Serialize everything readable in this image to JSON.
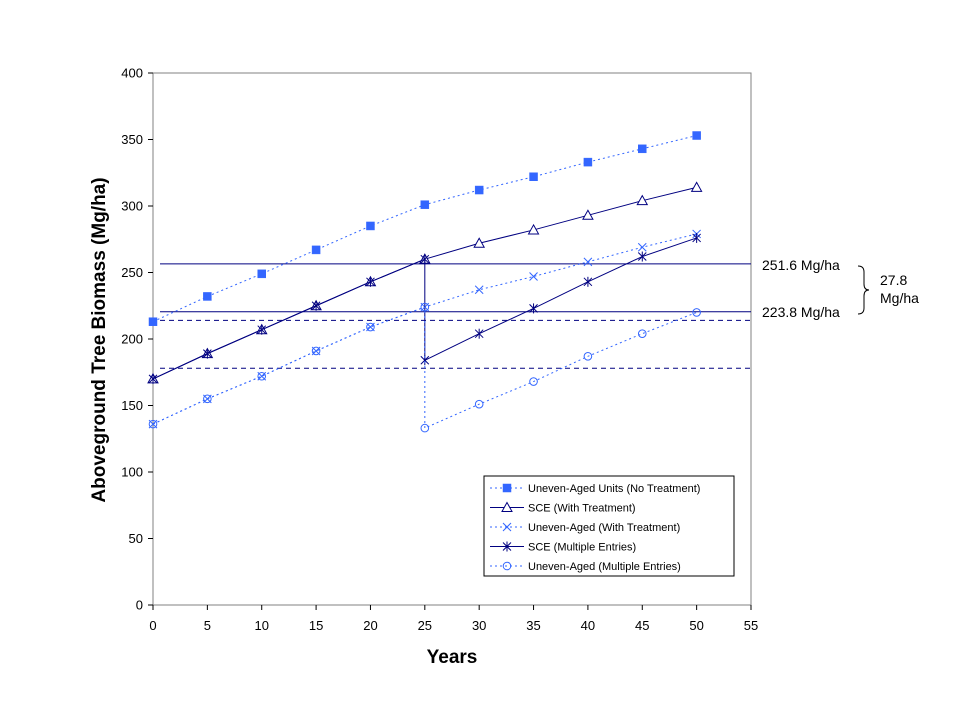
{
  "chart_data": {
    "type": "line",
    "xlabel": "Years",
    "ylabel": "Aboveground Tree Biomass (Mg/ha)",
    "xlim": [
      0,
      55
    ],
    "ylim": [
      0,
      400
    ],
    "xticks": [
      0,
      5,
      10,
      15,
      20,
      25,
      30,
      35,
      40,
      45,
      50,
      55
    ],
    "yticks": [
      0,
      50,
      100,
      150,
      200,
      250,
      300,
      350,
      400
    ],
    "grid": false,
    "legend_position": "bottom-right",
    "series": [
      {
        "name": "Uneven-Aged Units (No Treatment)",
        "color": "#3366ff",
        "line": "dotted",
        "marker": "square-filled",
        "x": [
          0,
          5,
          10,
          15,
          20,
          25,
          30,
          35,
          40,
          45,
          50
        ],
        "y": [
          213,
          232,
          249,
          267,
          285,
          301,
          312,
          322,
          333,
          343,
          353
        ]
      },
      {
        "name": "SCE (With Treatment)",
        "color": "#000080",
        "line": "solid",
        "marker": "triangle-open",
        "x": [
          0,
          5,
          10,
          15,
          20,
          25,
          30,
          35,
          40,
          45,
          50
        ],
        "y": [
          170,
          189,
          207,
          225,
          243,
          260,
          272,
          282,
          293,
          304,
          314
        ]
      },
      {
        "name": "Uneven-Aged (With Treatment)",
        "color": "#3366ff",
        "line": "dotted",
        "marker": "x",
        "x": [
          0,
          5,
          10,
          15,
          20,
          25,
          30,
          35,
          40,
          45,
          50
        ],
        "y": [
          136,
          155,
          172,
          191,
          209,
          224,
          237,
          247,
          258,
          269,
          279
        ]
      },
      {
        "name": "SCE (Multiple Entries)",
        "color": "#000080",
        "line": "solid",
        "marker": "asterisk",
        "x": [
          0,
          5,
          10,
          15,
          20,
          25,
          25,
          30,
          35,
          40,
          45,
          50
        ],
        "y": [
          170,
          189,
          207,
          225,
          243,
          260,
          184,
          204,
          223,
          243,
          262,
          276
        ]
      },
      {
        "name": "Uneven-Aged (Multiple Entries)",
        "color": "#3366ff",
        "line": "dotted",
        "marker": "circle-open",
        "x": [
          0,
          5,
          10,
          15,
          20,
          25,
          25,
          30,
          35,
          40,
          45,
          50
        ],
        "y": [
          136,
          155,
          172,
          191,
          209,
          224,
          133,
          151,
          168,
          187,
          204,
          220
        ]
      }
    ],
    "reference_lines": [
      {
        "y": 256.5,
        "style": "solid"
      },
      {
        "y": 220.5,
        "style": "solid"
      },
      {
        "y": 214,
        "style": "dashed"
      },
      {
        "y": 178,
        "style": "dashed"
      }
    ],
    "annotations": {
      "upper": "251.6 Mg/ha",
      "lower": "223.8 Mg/ha",
      "difference_line1": "27.8",
      "difference_line2": "Mg/ha"
    }
  }
}
